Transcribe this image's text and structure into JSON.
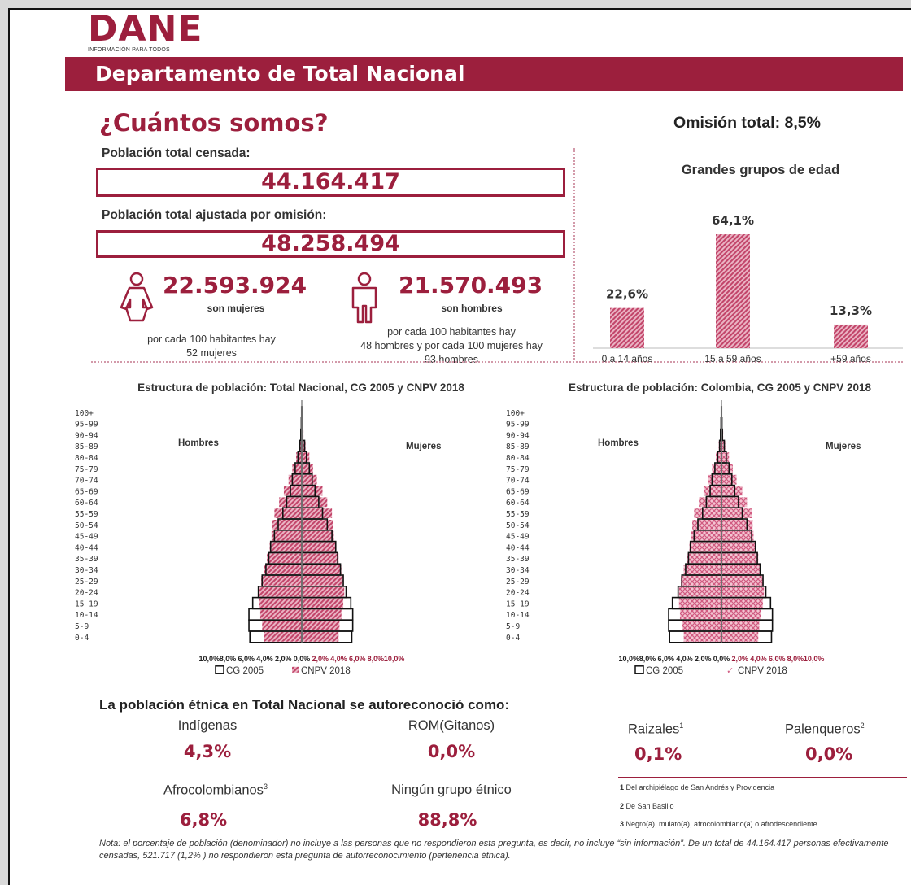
{
  "brand": {
    "logo": "DANE",
    "tagline": "INFORMACIÓN PARA TODOS"
  },
  "banner_title": "Departamento de Total Nacional",
  "main_heading": "¿Cuántos somos?",
  "census": {
    "total_label": "Población total censada:",
    "total_value": "44.164.417",
    "adjusted_label": "Población total ajustada por omisión:",
    "adjusted_value": "48.258.494"
  },
  "women": {
    "value": "22.593.924",
    "label": "son mujeres",
    "ratio_line1": "por cada 100 habitantes hay",
    "ratio_line2": "52 mujeres"
  },
  "men": {
    "value": "21.570.493",
    "label": "son hombres",
    "ratio_line1": "por cada 100 habitantes hay",
    "ratio_line2": "48 hombres y por cada 100 mujeres hay",
    "ratio_line3": "93 hombres"
  },
  "omission": "Omisión total: 8,5%",
  "age_groups_chart": {
    "type": "bar",
    "title": "Grandes grupos de edad",
    "categories": [
      "0 a 14 años",
      "15 a 59 años",
      "+59 años"
    ],
    "values": [
      22.6,
      64.1,
      13.3
    ],
    "labels": [
      "22,6%",
      "64,1%",
      "13,3%"
    ]
  },
  "chart_data": [
    {
      "type": "bar",
      "title": "Grandes grupos de edad",
      "categories": [
        "0 a 14 años",
        "15 a 59 años",
        "+59 años"
      ],
      "values": [
        22.6,
        64.1,
        13.3
      ]
    },
    {
      "type": "bar",
      "title": "Estructura de población: Total Nacional, CG 2005 y CNPV 2018",
      "age_groups": [
        "0-4",
        "5-9",
        "10-14",
        "15-19",
        "20-24",
        "25-29",
        "30-34",
        "35-39",
        "40-44",
        "45-49",
        "50-54",
        "55-59",
        "60-64",
        "65-69",
        "70-74",
        "75-79",
        "80-84",
        "85-89",
        "90-94",
        "95-99",
        "100+"
      ],
      "x_ticks": [
        "10,0%",
        "8,0%",
        "6,0%",
        "4,0%",
        "2,0%",
        "0,0%",
        "2,0%",
        "4,0%",
        "6,0%",
        "8,0%",
        "10,0%"
      ],
      "xlim": [
        -10,
        10
      ],
      "side_labels": [
        "Hombres",
        "Mujeres"
      ],
      "series": [
        {
          "name": "CG 2005",
          "men": [
            5.5,
            5.6,
            5.6,
            5.2,
            4.6,
            4.2,
            3.8,
            3.5,
            3.3,
            2.9,
            2.5,
            2.0,
            1.6,
            1.2,
            1.0,
            0.7,
            0.4,
            0.2,
            0.1,
            0.05,
            0.02
          ],
          "women": [
            5.3,
            5.4,
            5.4,
            5.2,
            4.7,
            4.4,
            4.1,
            3.8,
            3.6,
            3.2,
            2.7,
            2.2,
            1.8,
            1.4,
            1.1,
            0.8,
            0.5,
            0.3,
            0.1,
            0.05,
            0.02
          ]
        },
        {
          "name": "CNPV 2018",
          "men": [
            4.0,
            4.2,
            4.4,
            4.5,
            4.5,
            4.3,
            4.0,
            3.7,
            3.4,
            3.2,
            3.1,
            2.9,
            2.4,
            1.9,
            1.4,
            1.0,
            0.6,
            0.3,
            0.12,
            0.04,
            0.01
          ],
          "women": [
            3.9,
            4.0,
            4.2,
            4.4,
            4.5,
            4.4,
            4.2,
            3.9,
            3.6,
            3.4,
            3.3,
            3.2,
            2.7,
            2.2,
            1.6,
            1.2,
            0.8,
            0.4,
            0.18,
            0.06,
            0.02
          ]
        }
      ]
    },
    {
      "type": "bar",
      "title": "Estructura de población: Colombia, CG 2005 y CNPV 2018",
      "age_groups": [
        "0-4",
        "5-9",
        "10-14",
        "15-19",
        "20-24",
        "25-29",
        "30-34",
        "35-39",
        "40-44",
        "45-49",
        "50-54",
        "55-59",
        "60-64",
        "65-69",
        "70-74",
        "75-79",
        "80-84",
        "85-89",
        "90-94",
        "95-99",
        "100+"
      ],
      "x_ticks": [
        "10,0%",
        "8,0%",
        "6,0%",
        "4,0%",
        "2,0%",
        "0,0%",
        "2,0%",
        "4,0%",
        "6,0%",
        "8,0%",
        "10,0%"
      ],
      "xlim": [
        -10,
        10
      ],
      "side_labels": [
        "Hombres",
        "Mujeres"
      ],
      "series": [
        {
          "name": "CG 2005",
          "men": [
            5.5,
            5.6,
            5.6,
            5.2,
            4.6,
            4.2,
            3.8,
            3.5,
            3.3,
            2.9,
            2.5,
            2.0,
            1.6,
            1.2,
            1.0,
            0.7,
            0.4,
            0.2,
            0.1,
            0.05,
            0.02
          ],
          "women": [
            5.3,
            5.4,
            5.4,
            5.2,
            4.7,
            4.4,
            4.1,
            3.8,
            3.6,
            3.2,
            2.7,
            2.2,
            1.8,
            1.4,
            1.1,
            0.8,
            0.5,
            0.3,
            0.1,
            0.05,
            0.02
          ]
        },
        {
          "name": "CNPV 2018",
          "men": [
            4.0,
            4.2,
            4.4,
            4.5,
            4.5,
            4.3,
            4.0,
            3.7,
            3.4,
            3.2,
            3.1,
            2.9,
            2.4,
            1.9,
            1.4,
            1.0,
            0.6,
            0.3,
            0.12,
            0.04,
            0.01
          ],
          "women": [
            3.9,
            4.0,
            4.2,
            4.4,
            4.5,
            4.4,
            4.2,
            3.9,
            3.6,
            3.4,
            3.3,
            3.2,
            2.7,
            2.2,
            1.6,
            1.2,
            0.8,
            0.4,
            0.18,
            0.06,
            0.02
          ]
        }
      ]
    }
  ],
  "ethnic": {
    "heading": "La población étnica en Total Nacional se autoreconoció como:",
    "items": [
      {
        "name": "Indígenas",
        "value": "4,3%"
      },
      {
        "name": "ROM(Gitanos)",
        "value": "0,0%"
      },
      {
        "name": "Raizales",
        "sup": "1",
        "value": "0,1%"
      },
      {
        "name": "Palenqueros",
        "sup": "2",
        "value": "0,0%"
      },
      {
        "name": "Afrocolombianos",
        "sup": "3",
        "value": "6,8%"
      },
      {
        "name": "Ningún grupo étnico",
        "value": "88,8%"
      }
    ],
    "footnotes": [
      {
        "n": "1",
        "text": "Del archipiélago de San Andrés y Providencia"
      },
      {
        "n": "2",
        "text": "De San Basilio"
      },
      {
        "n": "3",
        "text": "Negro(a), mulato(a), afrocolombiano(a) o afrodescendiente"
      }
    ]
  },
  "note": "Nota: el porcentaje de población (denominador) no incluye a las personas que no respondieron esta pregunta, es decir, no incluye “sin información”. De un total de 44.164.417  personas efectivamente censadas, 521.717 (1,2% ) no respondieron esta pregunta de autorreconocimiento (pertenencia étnica).",
  "colors": {
    "brand": "#9c1f3d",
    "bar": "#c2456a"
  }
}
